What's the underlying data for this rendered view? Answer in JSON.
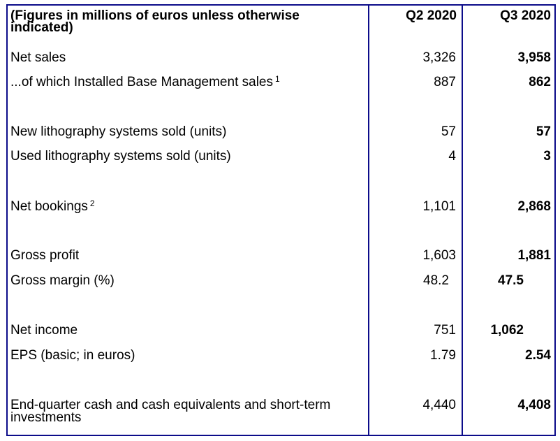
{
  "header": {
    "label": "(Figures in millions of euros unless otherwise indicated)",
    "col_q2": "Q2 2020",
    "col_q3": "Q3 2020"
  },
  "rows": [
    {
      "label": "Net sales",
      "q2": "3,326",
      "q3": "3,958"
    },
    {
      "label": "...of which Installed Base Management sales",
      "sup": "1",
      "q2": "887",
      "q3": "862"
    },
    {
      "label": "New lithography systems sold (units)",
      "q2": "57",
      "q3": "57"
    },
    {
      "label": "Used lithography systems sold (units)",
      "q2": "4",
      "q3": "3"
    },
    {
      "label": "Net bookings",
      "sup": "2",
      "q2": "1,101",
      "q3": "2,868"
    },
    {
      "label": "Gross profit",
      "q2": "1,603",
      "q3": "1,881"
    },
    {
      "label": "Gross margin (%)",
      "q2": "48.2",
      "q3": "47.5"
    },
    {
      "label": "Net income",
      "q2": "751",
      "q3": "1,062"
    },
    {
      "label": "EPS (basic; in euros)",
      "q2": "1.79",
      "q3": "2.54"
    },
    {
      "label": "End-quarter cash and cash equivalents and short-term investments",
      "q2": "4,440",
      "q3": "4,408"
    }
  ],
  "colors": {
    "border": "#0c0c8a"
  }
}
